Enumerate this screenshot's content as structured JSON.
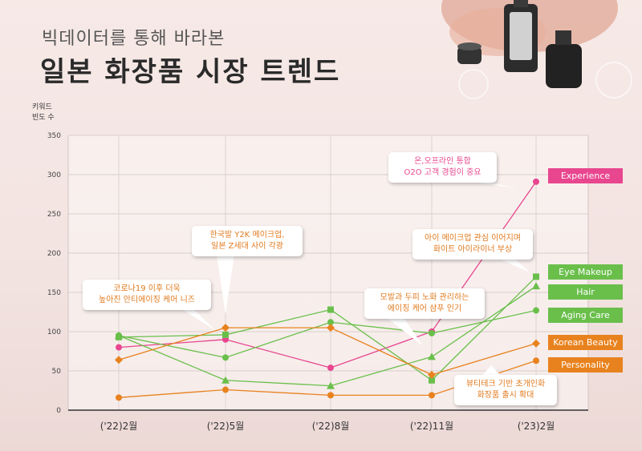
{
  "header": {
    "subtitle": "빅데이터를 통해 바라본",
    "title": "일본 화장품 시장 트렌드"
  },
  "chart_data": {
    "type": "line",
    "title": "일본 화장품 시장 트렌드",
    "ylabel_line1": "키워드",
    "ylabel_line2": "빈도 수",
    "xlabel": "",
    "categories": [
      "('22)2월",
      "('22)5월",
      "('22)8월",
      "('22)11월",
      "('23)2월"
    ],
    "ylim": [
      0,
      350
    ],
    "yticks": [
      0,
      50,
      100,
      150,
      200,
      250,
      300,
      350
    ],
    "grid": true,
    "series": [
      {
        "name": "Experience",
        "color": "#e8468e",
        "marker": "circle",
        "values": [
          80,
          90,
          54,
          100,
          291
        ]
      },
      {
        "name": "Eye Makeup",
        "color": "#6abf4b",
        "marker": "square",
        "values": [
          93,
          96,
          128,
          38,
          170
        ]
      },
      {
        "name": "Hair",
        "color": "#6abf4b",
        "marker": "triangle",
        "values": [
          95,
          38,
          31,
          68,
          158
        ]
      },
      {
        "name": "Aging Care",
        "color": "#6abf4b",
        "marker": "circle",
        "values": [
          95,
          67,
          112,
          98,
          127
        ]
      },
      {
        "name": "Korean Beauty",
        "color": "#e8821e",
        "marker": "diamond",
        "values": [
          64,
          105,
          105,
          45,
          85
        ]
      },
      {
        "name": "Personality",
        "color": "#e8821e",
        "marker": "circle",
        "values": [
          16,
          26,
          19,
          19,
          63
        ]
      }
    ],
    "annotations": [
      {
        "id": "a1",
        "text": "코로나19 이후 더욱\n높아진 안티에이징 케어 니즈",
        "color": "#e07a1e"
      },
      {
        "id": "a2",
        "text": "한국발 Y2K 메이크업,\n일본 Z세대 사이 각광",
        "color": "#e07a1e"
      },
      {
        "id": "a3",
        "text": "온,오프라인 통합\nO2O 고객 경험이 중요",
        "color": "#e8468e"
      },
      {
        "id": "a4",
        "text": "아이 메이크업 관심 이어지며\n화이트 아이라이너 부상",
        "color": "#e07a1e"
      },
      {
        "id": "a5",
        "text": "모발과 두피 노화 관리하는\n에이징 케어 샴푸 인기",
        "color": "#e07a1e"
      },
      {
        "id": "a6",
        "text": "뷰티테크 기반 초개인화\n화장품 출시 확대",
        "color": "#e07a1e"
      }
    ]
  }
}
